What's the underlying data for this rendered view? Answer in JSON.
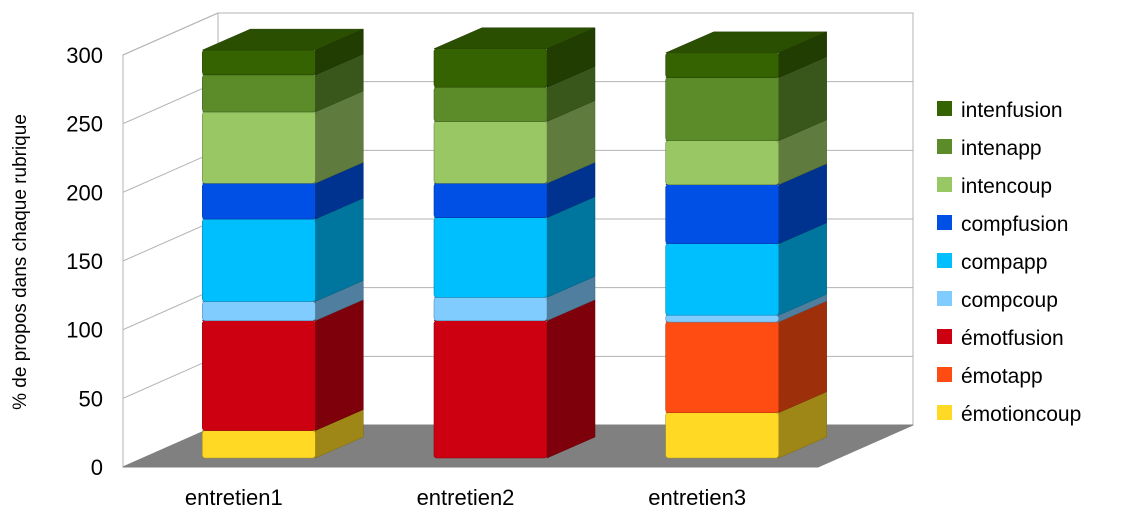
{
  "chart_data": {
    "type": "bar",
    "stacked": true,
    "three_d": true,
    "categories": [
      "entretien1",
      "entretien2",
      "entretien3"
    ],
    "ylabel": "% de propos dans chaque rubrique",
    "xlabel": "",
    "ylim": [
      0,
      300
    ],
    "yticks": [
      0,
      50,
      100,
      150,
      200,
      250,
      300
    ],
    "grid": true,
    "legend_position": "right",
    "series": [
      {
        "name": "émotioncoup",
        "color": "#FFD924",
        "values": [
          20,
          0,
          33
        ]
      },
      {
        "name": "émotapp",
        "color": "#FF4C12",
        "values": [
          0,
          0,
          66
        ]
      },
      {
        "name": "émotfusion",
        "color": "#CC0010",
        "values": [
          80,
          100,
          0
        ]
      },
      {
        "name": "compcoup",
        "color": "#80CCFF",
        "values": [
          14,
          17,
          5
        ]
      },
      {
        "name": "compapp",
        "color": "#00BFFF",
        "values": [
          60,
          58,
          52
        ]
      },
      {
        "name": "compfusion",
        "color": "#0050E6",
        "values": [
          26,
          25,
          43
        ]
      },
      {
        "name": "intencoup",
        "color": "#99C764",
        "values": [
          52,
          45,
          32
        ]
      },
      {
        "name": "intenapp",
        "color": "#5C8C2A",
        "values": [
          27,
          25,
          46
        ]
      },
      {
        "name": "intenfusion",
        "color": "#366301",
        "values": [
          18,
          28,
          18
        ]
      }
    ]
  }
}
